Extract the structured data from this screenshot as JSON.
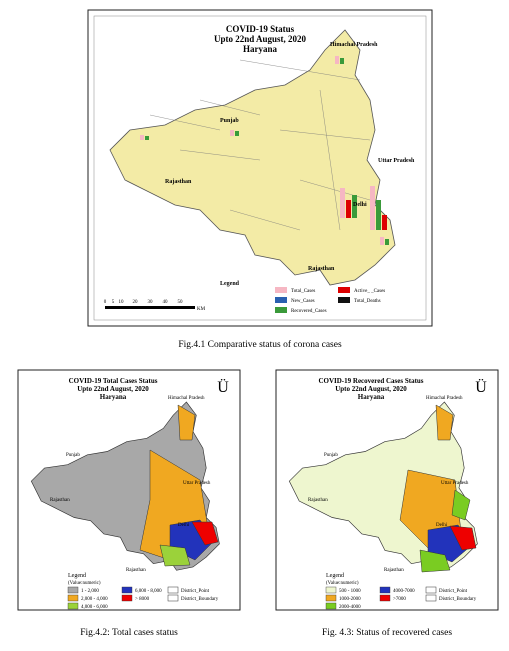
{
  "fig1": {
    "title": [
      "COVID-19 Status",
      "Upto 22nd August, 2020",
      "Haryana"
    ],
    "regions": [
      "Himachal Pradesh",
      "Punjab",
      "Uttar Pradesh",
      "Rajasthan",
      "Delhi",
      "Rajasthan"
    ],
    "legend_title": "Legend",
    "scale": [
      "0",
      "5",
      "10",
      "20",
      "30",
      "40",
      "50"
    ],
    "scale_unit": "KM",
    "legend": [
      "Total_Cases",
      "Active_ _Cases",
      "New_Cases",
      "Total_Deaths",
      "Recovered_Cases"
    ],
    "caption": "Fig.4.1 Comparative status of corona cases"
  },
  "fig2": {
    "title": [
      "COVID-19  Total Cases Status",
      "Upto 22nd August, 2020",
      "Haryana"
    ],
    "north": "Ü",
    "regions": [
      "Himachal Pradesh",
      "Punjab",
      "Uttar Pradesh",
      "Rajasthan",
      "Delhi",
      "Rajasthan"
    ],
    "legend_title": "Legend",
    "legend_sub": "(Value:numeric)",
    "legend": [
      "1 - 2,000",
      "2,000 - 4,000",
      "4,000 - 6,000",
      "6,000 - 8,000",
      "> 8000"
    ],
    "symbols": [
      "District_Point",
      "District_Boundary"
    ],
    "caption": "Fig.4.2: Total cases status"
  },
  "fig3": {
    "title": [
      "COVID-19  Recovered Cases Status",
      "Upto 22nd August, 2020",
      "Haryana"
    ],
    "north": "Ü",
    "regions": [
      "Himachal Pradesh",
      "Punjab",
      "Uttar Pradesh",
      "Rajasthan",
      "Delhi",
      "Rajasthan"
    ],
    "legend_title": "Legend",
    "legend_sub": "(Value:numeric)",
    "legend": [
      "500 - 1000",
      "1000-2000",
      "2000-4000",
      "4000-7000",
      ">7000"
    ],
    "symbols": [
      "District_Point",
      "District_Boundary"
    ],
    "caption": "Fig. 4.3: Status of recovered cases"
  }
}
